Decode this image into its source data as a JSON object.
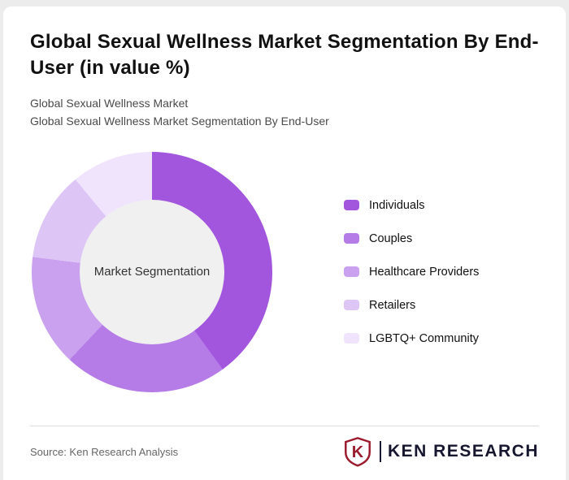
{
  "header": {
    "title": "Global Sexual Wellness Market Segmentation By End-User (in value %)",
    "subtitle1": "Global Sexual Wellness Market",
    "subtitle2": "Global Sexual Wellness Market Segmentation By End-User"
  },
  "chart_data": {
    "type": "pie",
    "donut": true,
    "title": "Global Sexual Wellness Market Segmentation By End-User (in value %)",
    "center_label": "Market Segmentation",
    "legend_position": "right",
    "categories": [
      "Individuals",
      "Couples",
      "Healthcare Providers",
      "Retailers",
      "LGBTQ+ Community"
    ],
    "values": [
      40,
      22,
      15,
      12,
      11
    ],
    "colors": [
      "#a256dd",
      "#b57be6",
      "#c9a1ef",
      "#ddc6f6",
      "#f0e4fc"
    ],
    "start_angle_deg": 0,
    "direction": "clockwise"
  },
  "footer": {
    "source": "Source: Ken Research Analysis",
    "logo_letter": "K",
    "logo_text": "KEN RESEARCH",
    "logo_color": "#9b1c2e",
    "logo_text_color": "#16162e"
  }
}
